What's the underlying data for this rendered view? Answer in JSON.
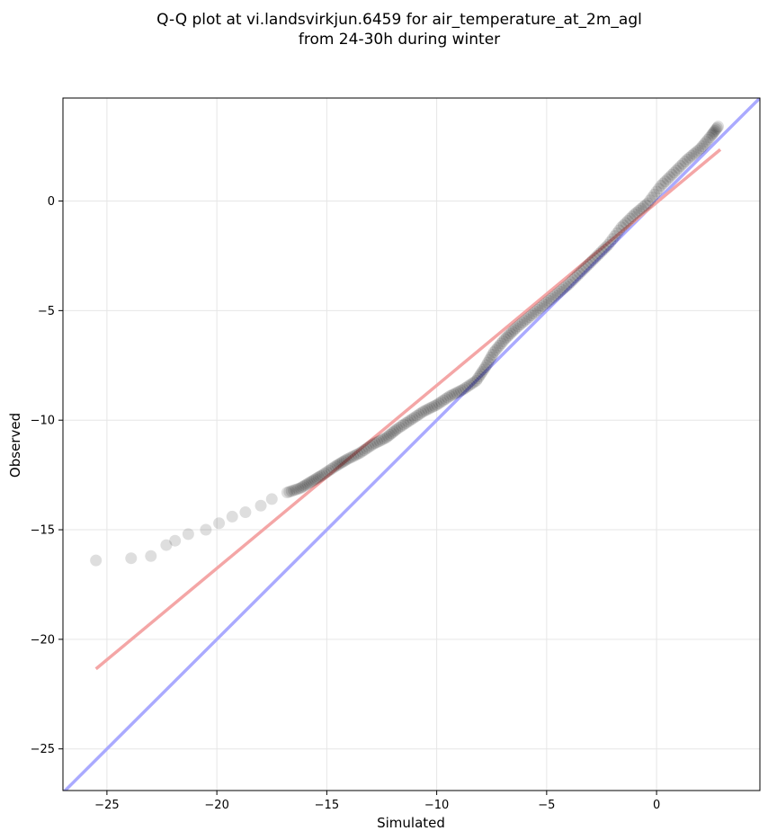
{
  "chart_data": {
    "type": "scatter",
    "title_line1": "Q-Q plot at vi.landsvirkjun.6459 for air_temperature_at_2m_agl",
    "title_line2": "from 24-30h during winter",
    "xlabel": "Simulated",
    "ylabel": "Observed",
    "xlim": [
      -27,
      4.7
    ],
    "ylim": [
      -26.9,
      4.7
    ],
    "x_ticks": [
      -25,
      -20,
      -15,
      -10,
      -5,
      0
    ],
    "y_ticks": [
      -25,
      -20,
      -15,
      -10,
      -5,
      0
    ],
    "x_tick_labels": [
      "−25",
      "−20",
      "−15",
      "−10",
      "−5",
      "0"
    ],
    "y_tick_labels": [
      "−25",
      "−20",
      "−15",
      "−10",
      "−5",
      "0"
    ],
    "grid": true,
    "identity_line": {
      "color": "#aaaaff",
      "x": [
        -27,
        4.7
      ],
      "y": [
        -27,
        4.7
      ]
    },
    "fit_line": {
      "color": "#f4a6a6",
      "x": [
        -25.5,
        2.9
      ],
      "y": [
        -21.35,
        2.35
      ]
    },
    "quantile_points": {
      "color": "#000000",
      "x": [
        -25.5,
        -23.9,
        -23.0,
        -22.3,
        -21.9,
        -21.3,
        -20.5,
        -19.9,
        -19.3,
        -18.7,
        -18.0,
        -17.5,
        -16.8,
        -16.2,
        -15.7,
        -15.2,
        -14.6,
        -14.1,
        -13.5,
        -12.9,
        -12.3,
        -11.8,
        -11.2,
        -10.6,
        -10.0,
        -9.4,
        -8.8,
        -8.2,
        -7.8,
        -7.4,
        -6.9,
        -6.4,
        -5.8,
        -5.2,
        -4.6,
        -4.0,
        -3.4,
        -2.8,
        -2.2,
        -1.6,
        -1.0,
        -0.4,
        0.2,
        0.8,
        1.4,
        2.0,
        2.5,
        2.8
      ],
      "y": [
        -16.4,
        -16.3,
        -16.2,
        -15.7,
        -15.5,
        -15.2,
        -15.0,
        -14.7,
        -14.4,
        -14.2,
        -13.9,
        -13.6,
        -13.3,
        -13.1,
        -12.8,
        -12.5,
        -12.1,
        -11.8,
        -11.5,
        -11.1,
        -10.8,
        -10.4,
        -10.0,
        -9.6,
        -9.3,
        -8.9,
        -8.6,
        -8.2,
        -7.6,
        -6.9,
        -6.3,
        -5.8,
        -5.3,
        -4.8,
        -4.3,
        -3.8,
        -3.2,
        -2.6,
        -2.0,
        -1.2,
        -0.6,
        -0.1,
        0.7,
        1.3,
        1.9,
        2.4,
        3.0,
        3.4
      ]
    }
  }
}
